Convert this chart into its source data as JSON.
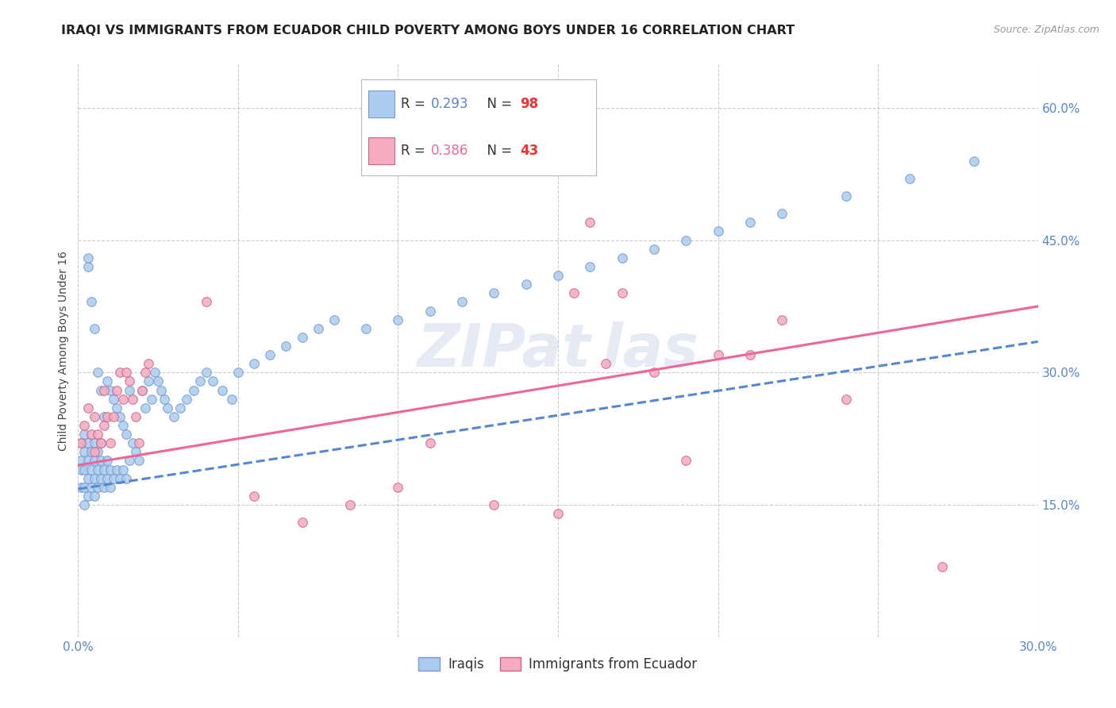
{
  "title": "IRAQI VS IMMIGRANTS FROM ECUADOR CHILD POVERTY AMONG BOYS UNDER 16 CORRELATION CHART",
  "source": "Source: ZipAtlas.com",
  "ylabel": "Child Poverty Among Boys Under 16",
  "xlim": [
    0.0,
    0.3
  ],
  "ylim": [
    0.0,
    0.65
  ],
  "iraqis_color": "#aaccf0",
  "iraqis_edge_color": "#7799cc",
  "ecuador_color": "#f5aac0",
  "ecuador_edge_color": "#cc6688",
  "iraqis_R": 0.293,
  "iraqis_N": 98,
  "ecuador_R": 0.386,
  "ecuador_N": 43,
  "iraqis_line_color": "#5588cc",
  "ecuador_line_color": "#ee6699",
  "legend_R_color_iraqis": "#5588cc",
  "legend_R_color_ecuador": "#ee6699",
  "legend_N_color_iraqis": "#ee3333",
  "legend_N_color_ecuador": "#ee3333",
  "tick_color": "#5588cc",
  "ylabel_color": "#444444",
  "title_color": "#222222",
  "source_color": "#999999",
  "watermark_color": "#aabbdd",
  "grid_color": "#cccccc",
  "background_color": "#ffffff",
  "title_fontsize": 11.5,
  "source_fontsize": 9,
  "axis_label_fontsize": 10,
  "tick_fontsize": 11,
  "legend_fontsize": 12,
  "watermark_fontsize": 54,
  "scatter_size": 70,
  "scatter_alpha": 0.85,
  "scatter_linewidth": 0.8,
  "iraqis_x": [
    0.001,
    0.001,
    0.001,
    0.001,
    0.002,
    0.002,
    0.002,
    0.002,
    0.002,
    0.003,
    0.003,
    0.003,
    0.003,
    0.003,
    0.003,
    0.004,
    0.004,
    0.004,
    0.004,
    0.005,
    0.005,
    0.005,
    0.005,
    0.005,
    0.006,
    0.006,
    0.006,
    0.006,
    0.007,
    0.007,
    0.007,
    0.007,
    0.008,
    0.008,
    0.008,
    0.009,
    0.009,
    0.009,
    0.01,
    0.01,
    0.01,
    0.011,
    0.011,
    0.012,
    0.012,
    0.013,
    0.013,
    0.014,
    0.014,
    0.015,
    0.015,
    0.016,
    0.016,
    0.017,
    0.018,
    0.019,
    0.02,
    0.021,
    0.022,
    0.023,
    0.024,
    0.025,
    0.026,
    0.027,
    0.028,
    0.03,
    0.032,
    0.034,
    0.036,
    0.038,
    0.04,
    0.042,
    0.045,
    0.048,
    0.05,
    0.055,
    0.06,
    0.065,
    0.07,
    0.075,
    0.08,
    0.09,
    0.1,
    0.11,
    0.12,
    0.13,
    0.14,
    0.15,
    0.16,
    0.17,
    0.18,
    0.19,
    0.2,
    0.21,
    0.22,
    0.24,
    0.26,
    0.28
  ],
  "iraqis_y": [
    0.17,
    0.19,
    0.2,
    0.22,
    0.15,
    0.17,
    0.19,
    0.21,
    0.23,
    0.16,
    0.18,
    0.2,
    0.22,
    0.42,
    0.43,
    0.17,
    0.19,
    0.21,
    0.38,
    0.16,
    0.18,
    0.2,
    0.22,
    0.35,
    0.17,
    0.19,
    0.21,
    0.3,
    0.18,
    0.2,
    0.22,
    0.28,
    0.17,
    0.19,
    0.25,
    0.18,
    0.2,
    0.29,
    0.17,
    0.19,
    0.28,
    0.18,
    0.27,
    0.19,
    0.26,
    0.18,
    0.25,
    0.19,
    0.24,
    0.18,
    0.23,
    0.2,
    0.28,
    0.22,
    0.21,
    0.2,
    0.28,
    0.26,
    0.29,
    0.27,
    0.3,
    0.29,
    0.28,
    0.27,
    0.26,
    0.25,
    0.26,
    0.27,
    0.28,
    0.29,
    0.3,
    0.29,
    0.28,
    0.27,
    0.3,
    0.31,
    0.32,
    0.33,
    0.34,
    0.35,
    0.36,
    0.35,
    0.36,
    0.37,
    0.38,
    0.39,
    0.4,
    0.41,
    0.42,
    0.43,
    0.44,
    0.45,
    0.46,
    0.47,
    0.48,
    0.5,
    0.52,
    0.54
  ],
  "ecuador_x": [
    0.001,
    0.002,
    0.003,
    0.004,
    0.005,
    0.005,
    0.006,
    0.007,
    0.008,
    0.008,
    0.009,
    0.01,
    0.011,
    0.012,
    0.013,
    0.014,
    0.015,
    0.016,
    0.017,
    0.018,
    0.019,
    0.02,
    0.021,
    0.022,
    0.04,
    0.055,
    0.07,
    0.085,
    0.1,
    0.11,
    0.13,
    0.15,
    0.155,
    0.16,
    0.165,
    0.17,
    0.18,
    0.19,
    0.2,
    0.21,
    0.22,
    0.24,
    0.27
  ],
  "ecuador_y": [
    0.22,
    0.24,
    0.26,
    0.23,
    0.21,
    0.25,
    0.23,
    0.22,
    0.24,
    0.28,
    0.25,
    0.22,
    0.25,
    0.28,
    0.3,
    0.27,
    0.3,
    0.29,
    0.27,
    0.25,
    0.22,
    0.28,
    0.3,
    0.31,
    0.38,
    0.16,
    0.13,
    0.15,
    0.17,
    0.22,
    0.15,
    0.14,
    0.39,
    0.47,
    0.31,
    0.39,
    0.3,
    0.2,
    0.32,
    0.32,
    0.36,
    0.27,
    0.08
  ],
  "iraqis_trend_x0": 0.0,
  "iraqis_trend_y0": 0.168,
  "iraqis_trend_x1": 0.3,
  "iraqis_trend_y1": 0.335,
  "ecuador_trend_x0": 0.0,
  "ecuador_trend_y0": 0.195,
  "ecuador_trend_x1": 0.3,
  "ecuador_trend_y1": 0.375
}
